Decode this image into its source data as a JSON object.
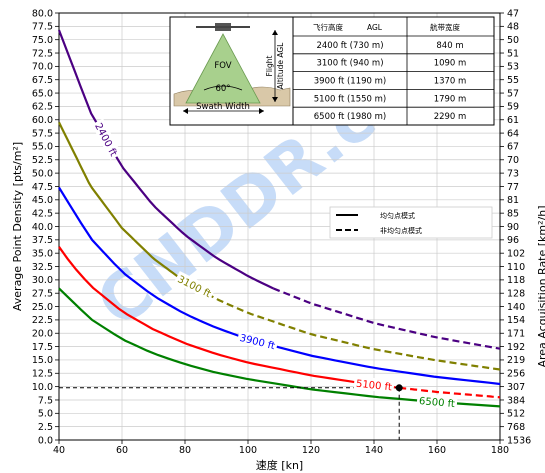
{
  "chart_data": {
    "type": "line",
    "xlabel": "速度 [kn]",
    "ylabel": "Average Point Density [pts/m²]",
    "y2label": "Area Acquisition Rate [km²/h]",
    "xlim": [
      40,
      180
    ],
    "ylim": [
      0,
      80
    ],
    "xticks": [
      40,
      60,
      80,
      100,
      120,
      140,
      160,
      180
    ],
    "yticks": [
      0,
      2.5,
      5,
      7.5,
      10,
      12.5,
      15,
      17.5,
      20,
      22.5,
      25,
      27.5,
      30,
      32.5,
      35,
      37.5,
      40,
      42.5,
      45,
      47.5,
      50,
      52.5,
      55,
      57.5,
      60,
      62.5,
      65,
      67.5,
      70,
      72.5,
      75,
      77.5,
      80
    ],
    "y2ticks": [
      "47",
      "48",
      "50",
      "51",
      "53",
      "55",
      "57",
      "59",
      "61",
      "64",
      "67",
      "70",
      "73",
      "77",
      "81",
      "85",
      "90",
      "96",
      "102",
      "110",
      "118",
      "128",
      "140",
      "154",
      "171",
      "192",
      "219",
      "256",
      "307",
      "384",
      "512",
      "768",
      "1536"
    ],
    "series": [
      {
        "name": "2400 ft",
        "color": "#4b0082",
        "solid_end": 108,
        "points": [
          [
            40,
            76.8
          ],
          [
            50,
            61.4
          ],
          [
            60,
            51.2
          ],
          [
            70,
            43.9
          ],
          [
            80,
            38.4
          ],
          [
            90,
            34.1
          ],
          [
            100,
            30.7
          ],
          [
            108,
            28.4
          ],
          [
            120,
            25.6
          ],
          [
            140,
            21.9
          ],
          [
            160,
            19.2
          ],
          [
            180,
            17.1
          ]
        ]
      },
      {
        "name": "3100 ft",
        "color": "#808000",
        "solid_end": 78,
        "points": [
          [
            40,
            59.5
          ],
          [
            50,
            47.6
          ],
          [
            60,
            39.7
          ],
          [
            70,
            34.0
          ],
          [
            78,
            30.5
          ],
          [
            90,
            26.4
          ],
          [
            100,
            23.8
          ],
          [
            120,
            19.8
          ],
          [
            140,
            17.0
          ],
          [
            160,
            14.9
          ],
          [
            180,
            13.2
          ]
        ]
      },
      {
        "name": "3900 ft",
        "color": "#0000ff",
        "solid_end": 180,
        "points": [
          [
            40,
            47.3
          ],
          [
            50,
            37.8
          ],
          [
            60,
            31.5
          ],
          [
            70,
            27.0
          ],
          [
            80,
            23.6
          ],
          [
            90,
            21.0
          ],
          [
            100,
            18.9
          ],
          [
            120,
            15.8
          ],
          [
            140,
            13.5
          ],
          [
            160,
            11.8
          ],
          [
            180,
            10.5
          ]
        ]
      },
      {
        "name": "5100 ft",
        "color": "#ff0000",
        "solid_end": 148,
        "points": [
          [
            40,
            36.2
          ],
          [
            44,
            32.9
          ],
          [
            50,
            28.9
          ],
          [
            60,
            24.1
          ],
          [
            70,
            20.7
          ],
          [
            80,
            18.1
          ],
          [
            90,
            16.1
          ],
          [
            100,
            14.5
          ],
          [
            120,
            12.1
          ],
          [
            140,
            10.3
          ],
          [
            148,
            9.78
          ],
          [
            160,
            9.0
          ],
          [
            180,
            8.0
          ]
        ]
      },
      {
        "name": "6500 ft",
        "color": "#008000",
        "solid_end": 180,
        "points": [
          [
            40,
            28.4
          ],
          [
            50,
            22.7
          ],
          [
            60,
            18.9
          ],
          [
            70,
            16.2
          ],
          [
            80,
            14.2
          ],
          [
            90,
            12.6
          ],
          [
            100,
            11.4
          ],
          [
            120,
            9.5
          ],
          [
            140,
            8.1
          ],
          [
            160,
            7.1
          ],
          [
            180,
            6.3
          ]
        ]
      }
    ],
    "annotation": {
      "x": 148,
      "y": 9.78,
      "color": "#000000"
    },
    "legend": {
      "placement": "right",
      "entries": [
        {
          "label": "均匀点模式",
          "style": "solid"
        },
        {
          "label": "非均匀点模式",
          "style": "dashed"
        }
      ]
    }
  },
  "inset": {
    "fov_label": "FOV",
    "angle_label": "60°",
    "swath_label": "Swath Width",
    "flight_label_1": "Flight",
    "flight_label_2": "Altitude AGL",
    "header_left": "飞行高度",
    "header_mid": "AGL",
    "header_right": "航带宽度",
    "rows": [
      {
        "altitude": "2400 ft (730 m)",
        "width": "840 m"
      },
      {
        "altitude": "3100 ft (940 m)",
        "width": "1090 m"
      },
      {
        "altitude": "3900 ft (1190 m)",
        "width": "1370 m"
      },
      {
        "altitude": "5100 ft (1550 m)",
        "width": "1790 m"
      },
      {
        "altitude": "6500 ft (1980 m)",
        "width": "2290 m"
      }
    ]
  },
  "watermark": {
    "text": "CNDDR.com"
  }
}
